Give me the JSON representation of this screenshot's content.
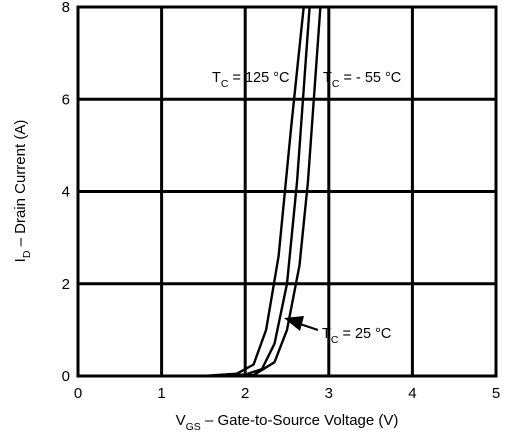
{
  "chart_data": {
    "type": "line",
    "xlabel": {
      "main": "V",
      "sub": "GS",
      "rest": " – Gate-to-Source Voltage (V)"
    },
    "ylabel": {
      "main": "I",
      "sub": "D",
      "rest": " – Drain Current (A)"
    },
    "xlim": [
      0,
      5
    ],
    "ylim": [
      0,
      8
    ],
    "xticks": [
      0,
      1,
      2,
      3,
      4,
      5
    ],
    "yticks": [
      0,
      2,
      4,
      6,
      8
    ],
    "grid": true,
    "series": [
      {
        "name": {
          "main": "T",
          "sub": "C",
          "rest": " = 125 °C"
        },
        "x": [
          0.3,
          1.5,
          1.9,
          2.1,
          2.25,
          2.4,
          2.55,
          2.7
        ],
        "y": [
          0,
          0,
          0.05,
          0.25,
          1.0,
          2.6,
          5.4,
          8.0
        ]
      },
      {
        "name": {
          "main": "T",
          "sub": "C",
          "rest": " = 25 °C"
        },
        "x": [
          0.3,
          1.5,
          2.0,
          2.2,
          2.35,
          2.5,
          2.62,
          2.77
        ],
        "y": [
          0,
          0,
          0.03,
          0.15,
          0.7,
          2.0,
          4.2,
          8.0
        ]
      },
      {
        "name": {
          "main": "T",
          "sub": "C",
          "rest": " = - 55 °C"
        },
        "x": [
          0.3,
          1.5,
          2.1,
          2.35,
          2.5,
          2.65,
          2.75,
          2.9
        ],
        "y": [
          0,
          0,
          0.02,
          0.3,
          1.0,
          2.4,
          4.2,
          8.0
        ]
      }
    ]
  }
}
